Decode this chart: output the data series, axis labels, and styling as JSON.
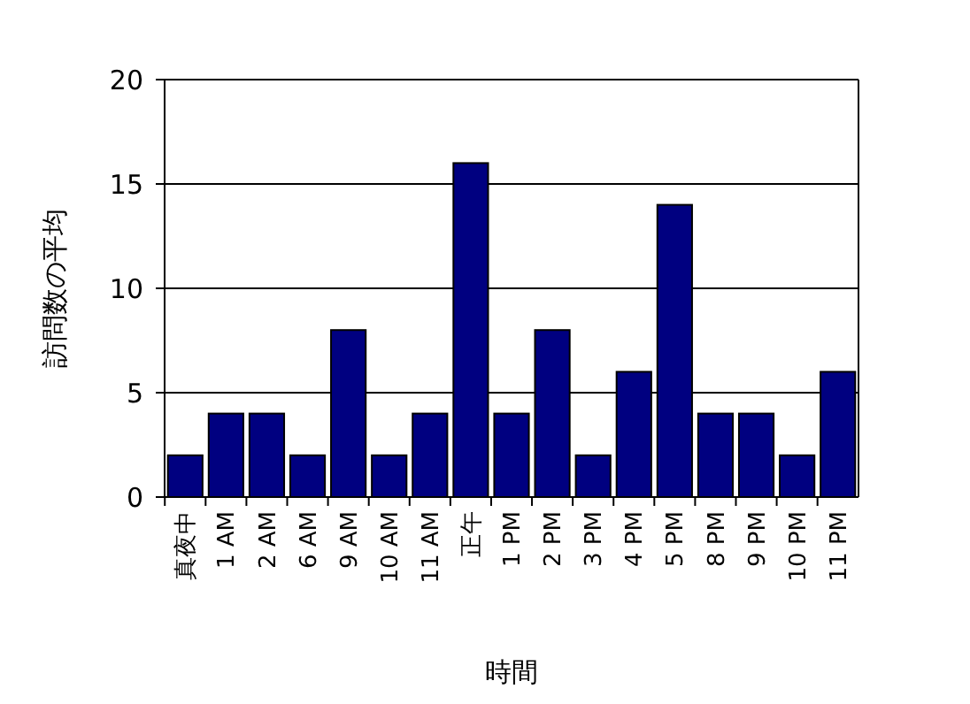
{
  "chart_data": {
    "type": "bar",
    "xlabel": "時間",
    "ylabel": "訪問数の平均",
    "categories": [
      "真夜中",
      "1 AM",
      "2 AM",
      "6 AM",
      "9 AM",
      "10 AM",
      "11 AM",
      "正午",
      "1 PM",
      "2 PM",
      "3 PM",
      "4 PM",
      "5 PM",
      "8 PM",
      "9 PM",
      "10 PM",
      "11 PM"
    ],
    "values": [
      2,
      4,
      4,
      2,
      8,
      2,
      4,
      16,
      4,
      8,
      2,
      6,
      14,
      4,
      4,
      2,
      6
    ],
    "color": "#000080",
    "ylim": [
      0,
      20
    ],
    "yticks": [
      0,
      5,
      10,
      15,
      20
    ],
    "grid": "y"
  }
}
